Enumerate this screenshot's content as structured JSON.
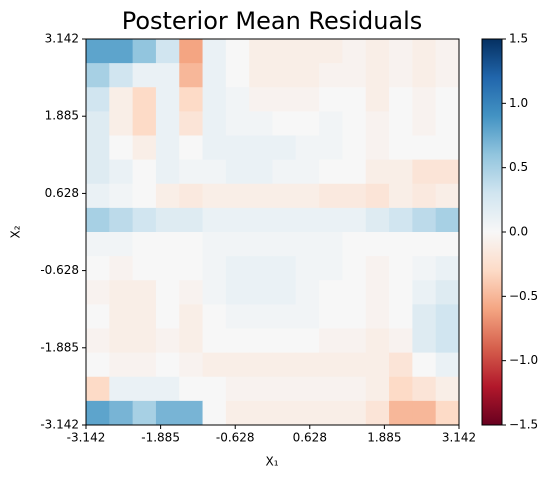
{
  "chart_data": {
    "type": "heatmap",
    "title": "Posterior Mean Residuals",
    "x_label": "X₁",
    "y_label": "X₂",
    "colormap": "RdBu",
    "xlim": [
      -3.142,
      3.142
    ],
    "ylim": [
      -3.142,
      3.142
    ],
    "xticks": [
      -3.142,
      -1.885,
      -0.628,
      0.628,
      1.885,
      3.142
    ],
    "yticks": [
      -3.142,
      -1.885,
      -0.628,
      0.628,
      1.885,
      3.142
    ],
    "clim": [
      -1.5,
      1.5
    ],
    "cticks": [
      {
        "value": -1.5,
        "label": "−1.5"
      },
      {
        "value": -1.0,
        "label": "−1.0"
      },
      {
        "value": -0.5,
        "label": "−0.5"
      },
      {
        "value": 0,
        "label": "0.0"
      },
      {
        "value": 0.5,
        "label": "0.5"
      },
      {
        "value": 1.0,
        "label": "1.0"
      },
      {
        "value": 1.5,
        "label": "1.5"
      }
    ],
    "values": [
      [
        0.8,
        0.8,
        0.6,
        0.3,
        -0.6,
        0.1,
        0,
        -0.1,
        -0.1,
        -0.1,
        -0.1,
        -0.05,
        -0.1,
        -0.05,
        -0.1,
        -0.05
      ],
      [
        0.5,
        0.3,
        0.1,
        0.1,
        -0.5,
        0.1,
        0,
        -0.1,
        -0.1,
        -0.1,
        -0.05,
        -0.05,
        -0.1,
        -0.05,
        -0.1,
        -0.05
      ],
      [
        0.3,
        -0.1,
        -0.3,
        0.1,
        -0.3,
        0.1,
        0.05,
        -0.05,
        -0.05,
        -0.05,
        0,
        0,
        -0.1,
        0,
        -0.05,
        0
      ],
      [
        0.2,
        -0.1,
        -0.3,
        0.1,
        -0.2,
        0.1,
        0.05,
        0.05,
        0,
        0,
        0.05,
        0,
        -0.05,
        0,
        -0.05,
        0
      ],
      [
        0.2,
        0,
        -0.1,
        0.1,
        0,
        0.1,
        0.1,
        0.1,
        0.1,
        0.05,
        0.05,
        0,
        -0.05,
        0,
        0,
        0
      ],
      [
        0.2,
        0.1,
        0,
        0.1,
        0.05,
        0.05,
        0.1,
        0.1,
        0.05,
        0.05,
        0,
        0,
        -0.1,
        -0.1,
        -0.2,
        -0.2
      ],
      [
        0.1,
        0.05,
        0,
        -0.1,
        -0.15,
        -0.1,
        -0.1,
        -0.1,
        -0.1,
        -0.1,
        -0.15,
        -0.15,
        -0.2,
        -0.1,
        -0.15,
        -0.1
      ],
      [
        0.5,
        0.4,
        0.3,
        0.2,
        0.2,
        0.1,
        0.1,
        0.1,
        0.1,
        0.1,
        0.1,
        0.1,
        0.2,
        0.3,
        0.4,
        0.5
      ],
      [
        0.05,
        0.05,
        0,
        0,
        0,
        0.05,
        0.05,
        0.05,
        0.05,
        0.05,
        0.05,
        0,
        0,
        0,
        0,
        0
      ],
      [
        0,
        -0.05,
        0,
        0,
        0,
        0.05,
        0.1,
        0.1,
        0.1,
        0.05,
        0.05,
        0,
        -0.05,
        0,
        0.05,
        0.1
      ],
      [
        -0.05,
        -0.1,
        -0.1,
        0,
        -0.05,
        0.05,
        0.1,
        0.1,
        0.1,
        0.05,
        0,
        0,
        -0.05,
        0,
        0.1,
        0.2
      ],
      [
        0,
        -0.1,
        -0.1,
        0,
        -0.1,
        0,
        0.05,
        0.05,
        0.05,
        0.05,
        0,
        0,
        -0.05,
        0,
        0.2,
        0.3
      ],
      [
        -0.05,
        -0.1,
        -0.1,
        -0.05,
        -0.1,
        0,
        0,
        0,
        0,
        0,
        -0.05,
        -0.05,
        -0.1,
        -0.05,
        0.2,
        0.3
      ],
      [
        0,
        -0.05,
        -0.05,
        0,
        -0.05,
        -0.1,
        -0.1,
        -0.1,
        -0.1,
        -0.1,
        -0.1,
        -0.1,
        -0.1,
        -0.2,
        0,
        0.1
      ],
      [
        -0.3,
        0.1,
        0.1,
        0.1,
        0,
        0,
        -0.05,
        -0.05,
        -0.05,
        -0.05,
        -0.05,
        -0.05,
        -0.1,
        -0.3,
        -0.2,
        -0.1
      ],
      [
        0.8,
        0.7,
        0.5,
        0.7,
        0.7,
        0,
        -0.1,
        -0.1,
        -0.1,
        -0.1,
        -0.1,
        -0.1,
        -0.2,
        -0.5,
        -0.5,
        -0.3
      ]
    ]
  }
}
